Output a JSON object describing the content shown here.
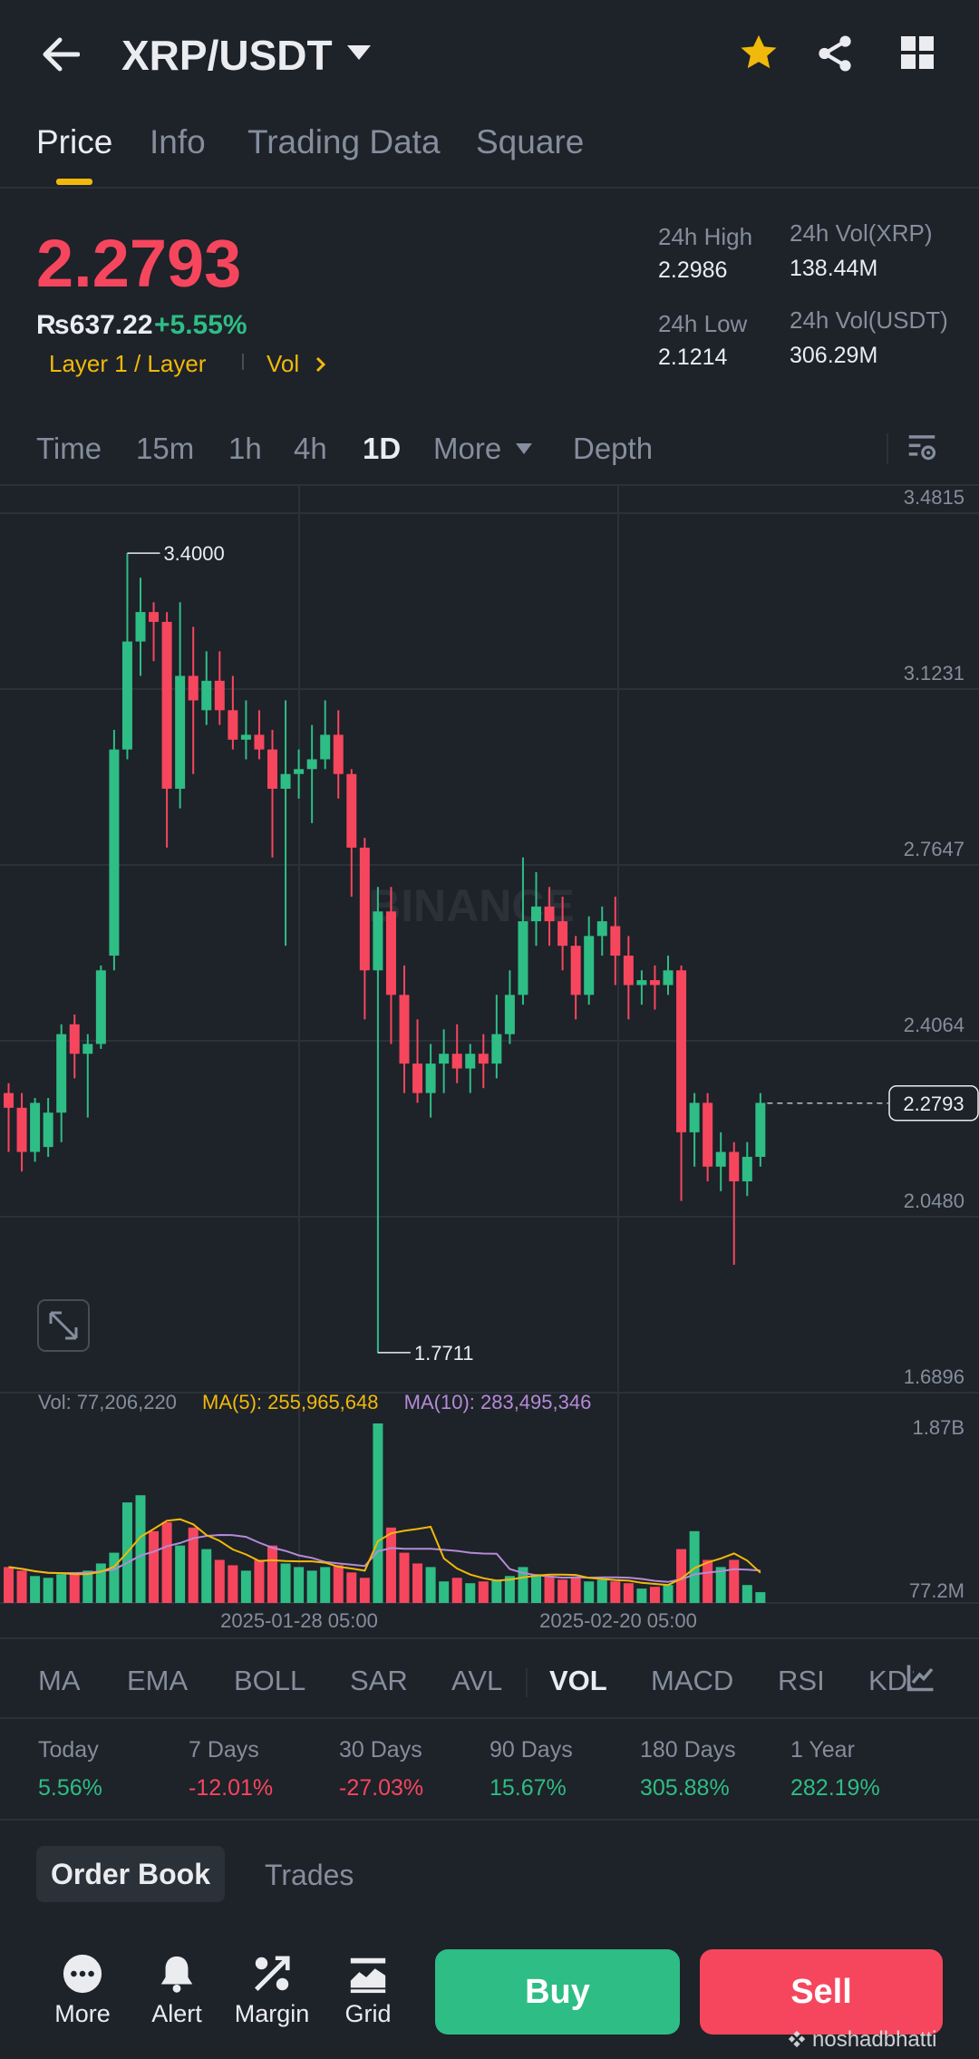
{
  "header": {
    "title": "XRP/USDT",
    "icons": [
      "back-arrow-icon",
      "dropdown-caret-icon",
      "star-icon",
      "share-icon",
      "grid-icon"
    ],
    "star_color": "#f0b90b"
  },
  "tabs": [
    {
      "label": "Price",
      "active": true
    },
    {
      "label": "Info"
    },
    {
      "label": "Trading Data"
    },
    {
      "label": "Square"
    }
  ],
  "price": {
    "last": "2.2793",
    "fiat": "₨637.22",
    "change": "+5.55%",
    "tag_layer": "Layer 1 / Layer",
    "tag_vol": "Vol",
    "stats": {
      "high_label": "24h High",
      "high_value": "2.2986",
      "low_label": "24h Low",
      "low_value": "2.1214",
      "vol_base_label": "24h Vol(XRP)",
      "vol_base_value": "138.44M",
      "vol_quote_label": "24h Vol(USDT)",
      "vol_quote_value": "306.29M"
    }
  },
  "intervals": [
    {
      "label": "Time"
    },
    {
      "label": "15m"
    },
    {
      "label": "1h"
    },
    {
      "label": "4h"
    },
    {
      "label": "1D",
      "active": true
    },
    {
      "label": "More"
    },
    {
      "label": "Depth"
    }
  ],
  "chart_data": {
    "type": "candlestick",
    "y_ticks": [
      "3.4815",
      "3.1231",
      "2.7647",
      "2.4064",
      "2.0480",
      "1.6896"
    ],
    "ylim": [
      1.6896,
      3.4815
    ],
    "high_marker": "3.4000",
    "low_marker": "1.7711",
    "last_price_marker": "2.2793",
    "x_labels": [
      "2025-01-28 05:00",
      "2025-02-20 05:00"
    ],
    "watermark": "BINANCE",
    "candles": [
      [
        2.3,
        2.27,
        2.32,
        2.18
      ],
      [
        2.27,
        2.18,
        2.3,
        2.14
      ],
      [
        2.18,
        2.28,
        2.29,
        2.16
      ],
      [
        2.19,
        2.26,
        2.29,
        2.17
      ],
      [
        2.26,
        2.42,
        2.44,
        2.2
      ],
      [
        2.44,
        2.38,
        2.46,
        2.33
      ],
      [
        2.38,
        2.4,
        2.42,
        2.25
      ],
      [
        2.4,
        2.55,
        2.56,
        2.39
      ],
      [
        2.58,
        3.0,
        3.04,
        2.55
      ],
      [
        3.0,
        3.22,
        3.4,
        2.98
      ],
      [
        3.22,
        3.28,
        3.35,
        3.15
      ],
      [
        3.28,
        3.26,
        3.3,
        3.18
      ],
      [
        3.26,
        2.92,
        3.28,
        2.8
      ],
      [
        2.92,
        3.15,
        3.3,
        2.88
      ],
      [
        3.15,
        3.1,
        3.25,
        2.95
      ],
      [
        3.08,
        3.14,
        3.2,
        3.05
      ],
      [
        3.14,
        3.08,
        3.2,
        3.05
      ],
      [
        3.08,
        3.02,
        3.15,
        3.0
      ],
      [
        3.02,
        3.03,
        3.1,
        2.98
      ],
      [
        3.03,
        3.0,
        3.08,
        2.98
      ],
      [
        3.0,
        2.92,
        3.04,
        2.78
      ],
      [
        2.92,
        2.95,
        3.1,
        2.6
      ],
      [
        2.95,
        2.96,
        3.0,
        2.9
      ],
      [
        2.96,
        2.98,
        3.05,
        2.85
      ],
      [
        2.98,
        3.03,
        3.1,
        2.96
      ],
      [
        3.03,
        2.95,
        3.08,
        2.9
      ],
      [
        2.95,
        2.8,
        2.96,
        2.7
      ],
      [
        2.8,
        2.55,
        2.82,
        2.45
      ],
      [
        2.55,
        2.67,
        2.72,
        1.77
      ],
      [
        2.67,
        2.5,
        2.72,
        2.4
      ],
      [
        2.5,
        2.36,
        2.56,
        2.3
      ],
      [
        2.36,
        2.3,
        2.45,
        2.28
      ],
      [
        2.3,
        2.36,
        2.4,
        2.25
      ],
      [
        2.36,
        2.38,
        2.43,
        2.3
      ],
      [
        2.38,
        2.35,
        2.44,
        2.32
      ],
      [
        2.35,
        2.38,
        2.4,
        2.3
      ],
      [
        2.38,
        2.36,
        2.42,
        2.31
      ],
      [
        2.36,
        2.42,
        2.5,
        2.33
      ],
      [
        2.42,
        2.5,
        2.55,
        2.4
      ],
      [
        2.5,
        2.65,
        2.78,
        2.48
      ],
      [
        2.65,
        2.68,
        2.75,
        2.6
      ],
      [
        2.68,
        2.65,
        2.72,
        2.6
      ],
      [
        2.65,
        2.6,
        2.7,
        2.55
      ],
      [
        2.6,
        2.5,
        2.62,
        2.45
      ],
      [
        2.5,
        2.62,
        2.66,
        2.48
      ],
      [
        2.62,
        2.65,
        2.68,
        2.58
      ],
      [
        2.64,
        2.58,
        2.7,
        2.52
      ],
      [
        2.58,
        2.52,
        2.62,
        2.45
      ],
      [
        2.52,
        2.53,
        2.55,
        2.48
      ],
      [
        2.53,
        2.52,
        2.56,
        2.47
      ],
      [
        2.52,
        2.55,
        2.58,
        2.5
      ],
      [
        2.55,
        2.22,
        2.56,
        2.08
      ],
      [
        2.22,
        2.28,
        2.3,
        2.15
      ],
      [
        2.28,
        2.15,
        2.3,
        2.12
      ],
      [
        2.15,
        2.18,
        2.22,
        2.1
      ],
      [
        2.18,
        2.12,
        2.2,
        1.95
      ],
      [
        2.12,
        2.17,
        2.2,
        2.09
      ],
      [
        2.17,
        2.28,
        2.3,
        2.15
      ]
    ],
    "volume": {
      "label": "Vol: 77,206,220",
      "ma5_label": "MA(5): 255,965,648",
      "ma10_label": "MA(10): 283,495,346",
      "top_tick": "1.87B",
      "bottom_tick": "77.2M",
      "ma5_color": "#f0b90b",
      "ma10_color": "#b48bd6",
      "bars": [
        0.2,
        0.18,
        0.15,
        0.14,
        0.16,
        0.17,
        0.18,
        0.22,
        0.28,
        0.56,
        0.6,
        0.4,
        0.45,
        0.32,
        0.42,
        0.3,
        0.24,
        0.21,
        0.18,
        0.24,
        0.32,
        0.22,
        0.2,
        0.18,
        0.2,
        0.21,
        0.17,
        0.14,
        1.0,
        0.42,
        0.28,
        0.22,
        0.2,
        0.12,
        0.14,
        0.11,
        0.12,
        0.13,
        0.15,
        0.2,
        0.16,
        0.15,
        0.13,
        0.14,
        0.12,
        0.13,
        0.12,
        0.11,
        0.08,
        0.09,
        0.1,
        0.3,
        0.4,
        0.24,
        0.2,
        0.24,
        0.1,
        0.06
      ]
    }
  },
  "indicators": [
    {
      "label": "MA"
    },
    {
      "label": "EMA"
    },
    {
      "label": "BOLL"
    },
    {
      "label": "SAR"
    },
    {
      "label": "AVL"
    },
    {
      "label": "VOL",
      "active": true
    },
    {
      "label": "MACD"
    },
    {
      "label": "RSI"
    },
    {
      "label": "KDJ"
    }
  ],
  "performance": [
    {
      "label": "Today",
      "value": "5.56%",
      "dir": "up"
    },
    {
      "label": "7 Days",
      "value": "-12.01%",
      "dir": "down"
    },
    {
      "label": "30 Days",
      "value": "-27.03%",
      "dir": "down"
    },
    {
      "label": "90 Days",
      "value": "15.67%",
      "dir": "up"
    },
    {
      "label": "180 Days",
      "value": "305.88%",
      "dir": "up"
    },
    {
      "label": "1 Year",
      "value": "282.19%",
      "dir": "up"
    }
  ],
  "orderbook": {
    "order_book_label": "Order Book",
    "trades_label": "Trades"
  },
  "bottom_bar": {
    "more": "More",
    "alert": "Alert",
    "margin": "Margin",
    "grid": "Grid",
    "buy": "Buy",
    "sell": "Sell",
    "watermark": "noshadbhatti"
  },
  "colors": {
    "up": "#2ebd85",
    "down": "#f6465d",
    "accent": "#f0b90b",
    "bg": "#1e2229"
  }
}
